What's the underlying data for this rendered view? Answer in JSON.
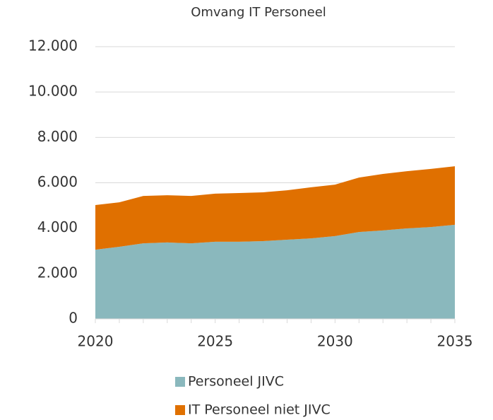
{
  "chart_data": {
    "type": "area",
    "stacked": true,
    "title": "Omvang IT Personeel",
    "x": [
      2020,
      2021,
      2022,
      2023,
      2024,
      2025,
      2026,
      2027,
      2028,
      2029,
      2030,
      2031,
      2032,
      2033,
      2034,
      2035
    ],
    "series": [
      {
        "name": "Personeel JIVC",
        "color": "#8ab8bd",
        "values": [
          3050,
          3180,
          3330,
          3370,
          3330,
          3400,
          3400,
          3430,
          3490,
          3550,
          3650,
          3830,
          3900,
          3990,
          4050,
          4150
        ]
      },
      {
        "name": "IT Personeel niet JIVC",
        "color": "#e07000",
        "values": [
          1970,
          1960,
          2090,
          2080,
          2090,
          2120,
          2150,
          2150,
          2180,
          2250,
          2270,
          2400,
          2490,
          2520,
          2560,
          2580
        ]
      }
    ],
    "xlim": [
      2020,
      2035
    ],
    "xticks": [
      2020,
      2025,
      2030,
      2035
    ],
    "ylim": [
      0,
      12000
    ],
    "yticks": [
      0,
      {
        "value": 2000,
        "label": "2.000"
      },
      {
        "value": 4000,
        "label": "4.000"
      },
      {
        "value": 6000,
        "label": "6.000"
      },
      {
        "value": 8000,
        "label": "8.000"
      },
      {
        "value": 10000,
        "label": "10.000"
      },
      {
        "value": 12000,
        "label": "12.000"
      }
    ],
    "grid": true,
    "legend": "bottom"
  }
}
